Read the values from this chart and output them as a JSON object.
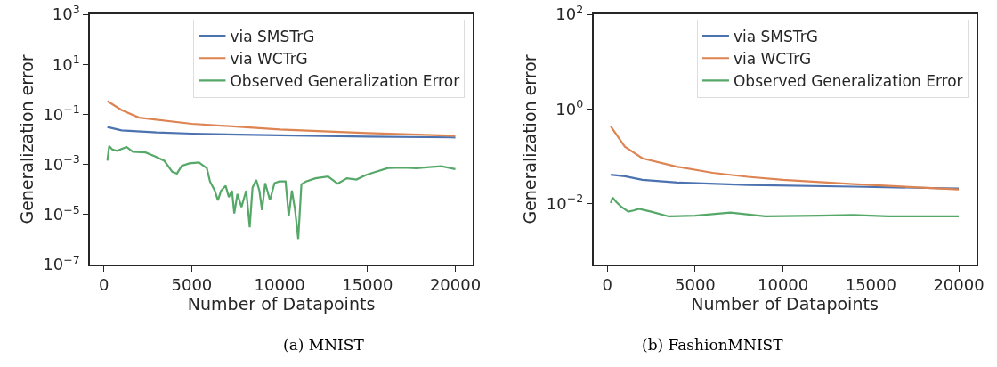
{
  "chart_data": [
    {
      "type": "line",
      "xlabel": "Number of Datapoints",
      "ylabel": "Generalization error",
      "log": "y",
      "legend": "top right",
      "marker": "none",
      "line_style": "solid",
      "xlim": [
        -790,
        20990
      ],
      "xticks": [
        0,
        5000,
        10000,
        15000,
        20000
      ],
      "ylim": [
        1e-07,
        1000
      ],
      "yticks": [
        {
          "value": 1e-07,
          "label": "10$^{−7}$"
        },
        {
          "value": 1e-05,
          "label": "10$^{−5}$"
        },
        {
          "value": 0.001,
          "label": "10$^{−3}$"
        },
        {
          "value": 0.1,
          "label": "10$^{−1}$"
        },
        {
          "value": 10,
          "label": "10$^{1}$"
        },
        {
          "value": 1000,
          "label": "10$^{3}$"
        }
      ],
      "annotations": [
        "(a) MNIST"
      ],
      "series": [
        {
          "name": "via SMSTrG",
          "color": "#4c72b0",
          "x": [
            200,
            1000,
            3000,
            5000,
            10000,
            15000,
            20000
          ],
          "values": [
            0.031,
            0.023,
            0.019,
            0.017,
            0.0145,
            0.013,
            0.012
          ]
        },
        {
          "name": "via WCTrG",
          "color": "#dd8452",
          "x": [
            200,
            1000,
            2000,
            5000,
            10000,
            15000,
            20000
          ],
          "values": [
            0.34,
            0.15,
            0.074,
            0.042,
            0.025,
            0.018,
            0.014
          ]
        },
        {
          "name": "Observed Generalization Error",
          "color": "#55a868",
          "x": [
            200,
            300,
            480,
            750,
            1290,
            1650,
            2370,
            2900,
            3440,
            3890,
            4160,
            4430,
            4870,
            5410,
            5860,
            6040,
            6310,
            6490,
            6670,
            6930,
            7110,
            7290,
            7420,
            7600,
            7830,
            8100,
            8300,
            8460,
            8670,
            8850,
            9000,
            9180,
            9450,
            9710,
            9980,
            10340,
            10520,
            10700,
            10880,
            11060,
            11240,
            11500,
            12040,
            12760,
            13300,
            13830,
            14370,
            14910,
            15450,
            16170,
            17060,
            17780,
            18500,
            19210,
            20000
          ],
          "values": [
            0.0014,
            0.0054,
            0.004,
            0.0035,
            0.005,
            0.0032,
            0.003,
            0.0021,
            0.0014,
            0.00051,
            0.00043,
            0.00088,
            0.0011,
            0.0012,
            0.0007,
            0.00021,
            9e-05,
            3.7e-05,
            9e-05,
            0.00014,
            5e-05,
            9e-05,
            1.1e-05,
            6.6e-05,
            2e-05,
            9e-05,
            3.1e-06,
            0.00012,
            0.00024,
            9e-05,
            1.5e-05,
            0.00018,
            3.7e-05,
            0.00018,
            0.00021,
            0.00021,
            8.5e-06,
            9e-05,
            1.5e-05,
            1.05e-06,
            0.00016,
            0.00021,
            0.00028,
            0.00033,
            0.00017,
            0.00028,
            0.00025,
            0.00038,
            0.0005,
            0.00072,
            0.00074,
            0.0007,
            0.00078,
            0.00085,
            0.00065
          ]
        }
      ]
    },
    {
      "type": "line",
      "xlabel": "Number of Datapoints",
      "ylabel": "Generalization error",
      "log": "y",
      "legend": "top right",
      "marker": "none",
      "line_style": "solid",
      "xlim": [
        -790,
        20990
      ],
      "xticks": [
        0,
        5000,
        10000,
        15000,
        20000
      ],
      "ylim": [
        0.00052,
        100
      ],
      "yticks": [
        {
          "value": 0.01,
          "label": "10$^{−2}$"
        },
        {
          "value": 1,
          "label": "10$^{0}$"
        },
        {
          "value": 100,
          "label": "10$^{2}$"
        }
      ],
      "annotations": [
        "(b) FashionMNIST"
      ],
      "series": [
        {
          "name": "via SMSTrG",
          "color": "#4c72b0",
          "x": [
            200,
            1000,
            2000,
            4000,
            8000,
            14000,
            20000
          ],
          "values": [
            0.041,
            0.038,
            0.032,
            0.028,
            0.025,
            0.023,
            0.021
          ]
        },
        {
          "name": "via WCTrG",
          "color": "#dd8452",
          "x": [
            200,
            1000,
            2000,
            4000,
            6000,
            8000,
            10000,
            14000,
            20000
          ],
          "values": [
            0.43,
            0.16,
            0.091,
            0.06,
            0.045,
            0.037,
            0.032,
            0.026,
            0.02
          ]
        },
        {
          "name": "Observed Generalization Error",
          "color": "#55a868",
          "x": [
            200,
            300,
            500,
            800,
            1200,
            1500,
            1800,
            2500,
            3500,
            5000,
            7000,
            9000,
            12000,
            14000,
            16000,
            20000
          ],
          "values": [
            0.0103,
            0.0135,
            0.011,
            0.0086,
            0.0068,
            0.0072,
            0.0078,
            0.0068,
            0.0054,
            0.0056,
            0.0065,
            0.0054,
            0.0056,
            0.0058,
            0.0054,
            0.0054
          ]
        }
      ]
    }
  ]
}
